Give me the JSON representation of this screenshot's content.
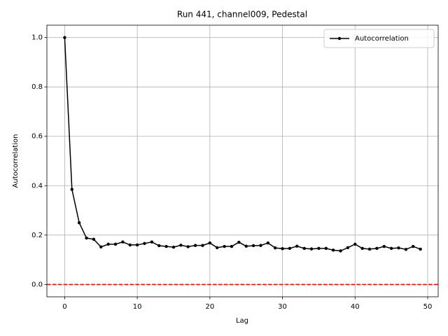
{
  "chart_data": {
    "type": "line",
    "title": "Run 441, channel009, Pedestal",
    "xlabel": "Lag",
    "ylabel": "Autocorrelation",
    "x": [
      0,
      1,
      2,
      3,
      4,
      5,
      6,
      7,
      8,
      9,
      10,
      11,
      12,
      13,
      14,
      15,
      16,
      17,
      18,
      19,
      20,
      21,
      22,
      23,
      24,
      25,
      26,
      27,
      28,
      29,
      30,
      31,
      32,
      33,
      34,
      35,
      36,
      37,
      38,
      39,
      40,
      41,
      42,
      43,
      44,
      45,
      46,
      47,
      48,
      49
    ],
    "series": [
      {
        "name": "Autocorrelation",
        "color": "#000000",
        "values": [
          1.0,
          0.385,
          0.25,
          0.188,
          0.183,
          0.152,
          0.163,
          0.163,
          0.172,
          0.16,
          0.16,
          0.166,
          0.172,
          0.157,
          0.154,
          0.151,
          0.159,
          0.153,
          0.158,
          0.158,
          0.168,
          0.149,
          0.154,
          0.154,
          0.171,
          0.155,
          0.157,
          0.158,
          0.168,
          0.148,
          0.145,
          0.146,
          0.155,
          0.146,
          0.144,
          0.146,
          0.146,
          0.139,
          0.136,
          0.149,
          0.163,
          0.146,
          0.143,
          0.146,
          0.154,
          0.146,
          0.148,
          0.142,
          0.154,
          0.143
        ]
      }
    ],
    "hline": {
      "value": 0,
      "color": "#ff0000"
    },
    "xlim": [
      -2.45,
      51.45
    ],
    "xticks": [
      0,
      10,
      20,
      30,
      40,
      50
    ],
    "ylim": [
      -0.05,
      1.05
    ],
    "yticks": [
      {
        "value": 0,
        "label": "0.0"
      },
      {
        "value": 0.2,
        "label": "0.2"
      },
      {
        "value": 0.4,
        "label": "0.4"
      },
      {
        "value": 0.6,
        "label": "0.6"
      },
      {
        "value": 0.8,
        "label": "0.8"
      },
      {
        "value": 1.0,
        "label": "1.0"
      }
    ],
    "grid": true,
    "legend": "upper right"
  }
}
